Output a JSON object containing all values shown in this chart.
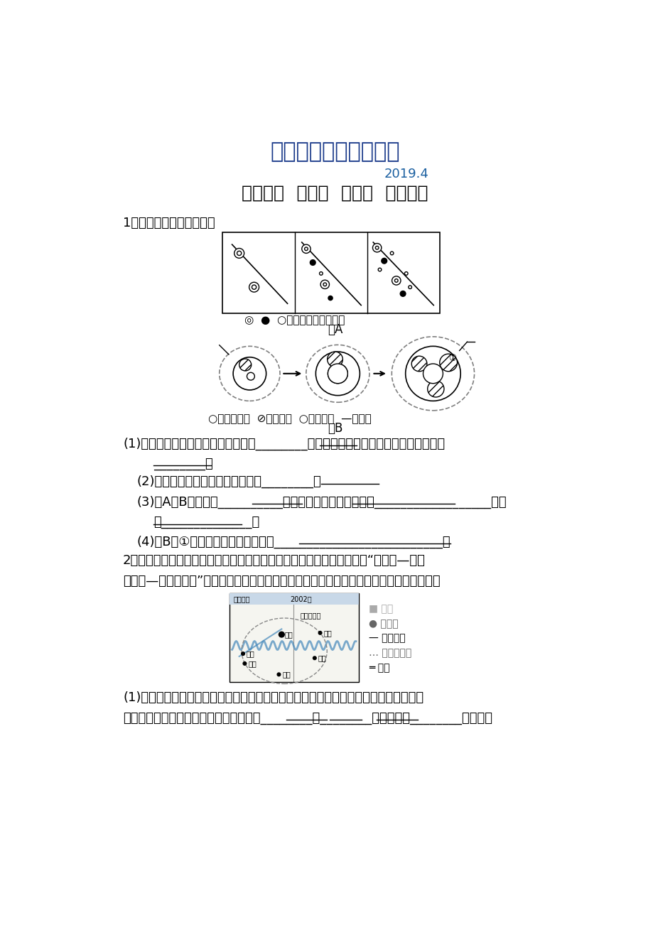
{
  "title1": "最新地理精品教学资料",
  "title2": "2019.4",
  "title3": "第四部分  选修四  第二讲  城乡分布",
  "q1_intro": "1．读图，完成下列问题。",
  "fig_a_legend": "◎  ●  ○表示不同等级的城市",
  "fig_a_label": "图A",
  "fig_b_legend": "○生活居住区  ⊘工业用地  ○城镇用地  —交通线",
  "fig_b_label": "图B",
  "q1_1": "(1)反映城市群体组织结构变化的是图________，其形态特征从散点状到串珠状再演变到",
  "q1_1b": "________。",
  "q1_2": "(2)反映城市的内部结构演变的是图________。",
  "q1_3": "(3)图A、B反映的是__________现象的两种表现形式：一是__________________，二",
  "q1_3b": "是______________。",
  "q1_4": "(4)图B中①工业区形成的原因可能是__________________________。",
  "q2_intro": "2．武汉起源于军事要塞，后来城市功能转变为以商贸为主，目前构建了“城市圈—都市",
  "q2_intro2": "发展区—都市核心城”三层次、产业分工合理的规划框架，如下图所示。据此回答下列问题。",
  "q2_1": "(1)引起武汉城市形态从沿长江到沿长江、汉江伸展，再到武汉都市圈的构建，主要原因",
  "q2_1b": "有：一是对外主要交通运输方式经历了从________到________变化，二是________的发展。",
  "title1_color": "#1a3a8a",
  "title2_color": "#1a5fa0",
  "title3_color": "#000000",
  "body_color": "#000000",
  "bg_color": "#ffffff"
}
